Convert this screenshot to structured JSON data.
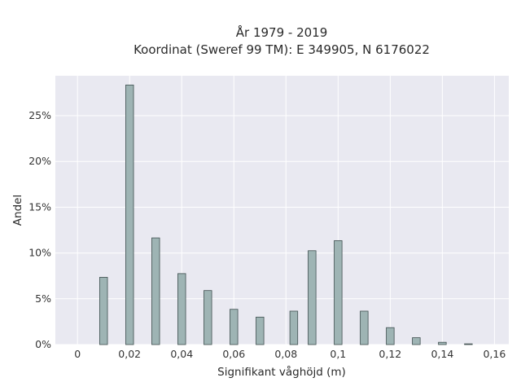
{
  "chart_data": {
    "type": "bar",
    "title_lines": [
      "År 1979 - 2019",
      "Koordinat (Sweref 99 TM): E 349905, N 6176022"
    ],
    "xlabel": "Signifikant våghöjd (m)",
    "ylabel": "Andel",
    "xlim": [
      -0.0085,
      0.1655
    ],
    "ylim": [
      0,
      0.2936
    ],
    "x_ticks": [
      0,
      0.02,
      0.04,
      0.06,
      0.08,
      0.1,
      0.12,
      0.14,
      0.16
    ],
    "x_tick_labels": [
      "0",
      "0,02",
      "0,04",
      "0,06",
      "0,08",
      "0,1",
      "0,12",
      "0,14",
      "0,16"
    ],
    "y_ticks": [
      0,
      0.05,
      0.1,
      0.15,
      0.2,
      0.25
    ],
    "y_tick_labels": [
      "0%",
      "5%",
      "10%",
      "15%",
      "20%",
      "25%"
    ],
    "bar_width": 0.003,
    "grid": true,
    "colors": {
      "bar_fill": "#9eb4b4",
      "bar_stroke": "#3f4f4f",
      "plot_background": "#e9e9f1",
      "grid": "#ffffff"
    },
    "x": [
      0.01,
      0.02,
      0.03,
      0.04,
      0.05,
      0.06,
      0.07,
      0.083,
      0.09,
      0.1,
      0.11,
      0.12,
      0.13,
      0.14,
      0.15
    ],
    "values": [
      0.0735,
      0.2835,
      0.1165,
      0.0775,
      0.059,
      0.0385,
      0.03,
      0.0365,
      0.1025,
      0.1135,
      0.0365,
      0.0185,
      0.0075,
      0.0025,
      0.0008
    ]
  }
}
